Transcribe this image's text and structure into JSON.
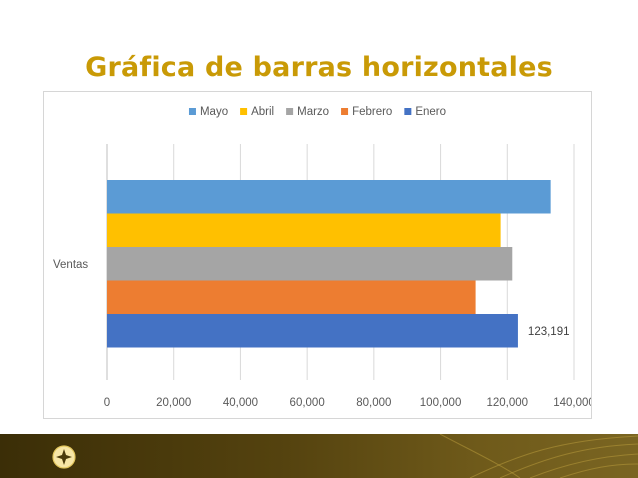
{
  "slide": {
    "title": "Gráfica de barras horizontales"
  },
  "colors": {
    "title": "#c99a06",
    "footer": "#55430f"
  },
  "icons": {
    "logo": "diamond-star-icon"
  },
  "chart_data": {
    "type": "bar",
    "orientation": "horizontal",
    "title": "",
    "categories": [
      "Ventas"
    ],
    "series": [
      {
        "name": "Mayo",
        "values": [
          133000
        ],
        "color": "#5b9bd5"
      },
      {
        "name": "Abril",
        "values": [
          118000
        ],
        "color": "#ffc000"
      },
      {
        "name": "Marzo",
        "values": [
          121500
        ],
        "color": "#a5a5a5"
      },
      {
        "name": "Febrero",
        "values": [
          110500
        ],
        "color": "#ed7d31"
      },
      {
        "name": "Enero",
        "values": [
          123191
        ],
        "color": "#4472c4"
      }
    ],
    "data_labels": [
      {
        "series": "Enero",
        "text": "123,191"
      }
    ],
    "xlim": [
      0,
      140000
    ],
    "x_ticks": [
      "0",
      "20,000",
      "40,000",
      "60,000",
      "80,000",
      "100,000",
      "120,000",
      "140,000"
    ],
    "x_tick_values": [
      0,
      20000,
      40000,
      60000,
      80000,
      100000,
      120000,
      140000
    ],
    "legend_position": "top",
    "legend_order": [
      "Mayo",
      "Abril",
      "Marzo",
      "Febrero",
      "Enero"
    ],
    "grid": true
  }
}
